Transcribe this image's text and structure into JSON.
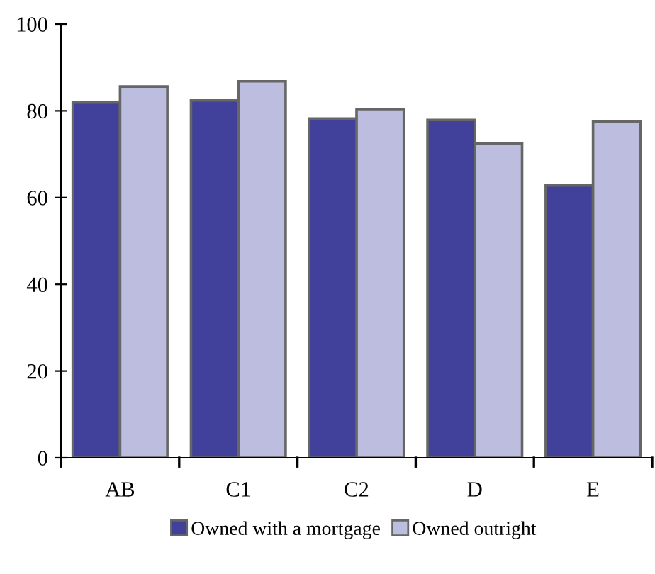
{
  "chart_data": {
    "type": "bar",
    "categories": [
      "AB",
      "C1",
      "C2",
      "D",
      "E"
    ],
    "series": [
      {
        "name": "Owned with a mortgage",
        "color": "#41419b",
        "values": [
          81.9,
          82.4,
          78.2,
          77.9,
          62.8
        ]
      },
      {
        "name": "Owned outright",
        "color": "#bdbddf",
        "values": [
          85.6,
          86.8,
          80.4,
          72.5,
          77.6
        ]
      }
    ],
    "ylim": [
      0,
      100
    ],
    "yticks": [
      0,
      20,
      40,
      60,
      80,
      100
    ],
    "grid": false,
    "legend": "bottom"
  }
}
